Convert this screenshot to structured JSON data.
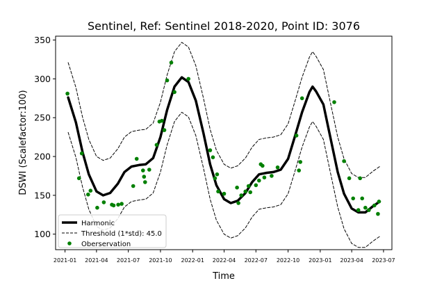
{
  "chart_data": {
    "type": "line",
    "title": "Sentinel, Ref: Sentinel 2018-2020, Point ID: 3076",
    "xlabel": "Time",
    "ylabel": "DSWI (Scalefactor:100)",
    "xlim": [
      "2020-12-05",
      "2023-07-25"
    ],
    "ylim": [
      80,
      355
    ],
    "x_ticks": [
      "2021-01",
      "2021-04",
      "2021-07",
      "2021-10",
      "2022-01",
      "2022-04",
      "2022-07",
      "2022-10",
      "2023-01",
      "2023-04",
      "2023-07"
    ],
    "y_ticks": [
      100,
      150,
      200,
      250,
      300,
      350
    ],
    "grid": false,
    "legend_position": "lower-left",
    "colors": {
      "harmonic": "#000000",
      "threshold": "#000000",
      "observation": "#008000"
    },
    "series": [
      {
        "name": "Harmonic",
        "style": "solid",
        "points": [
          [
            "2021-01-10",
            276
          ],
          [
            "2021-02-01",
            244
          ],
          [
            "2021-02-20",
            206
          ],
          [
            "2021-03-10",
            177
          ],
          [
            "2021-04-01",
            155
          ],
          [
            "2021-04-20",
            150
          ],
          [
            "2021-05-10",
            153
          ],
          [
            "2021-06-01",
            165
          ],
          [
            "2021-06-20",
            180
          ],
          [
            "2021-07-10",
            187
          ],
          [
            "2021-08-01",
            189
          ],
          [
            "2021-08-20",
            190
          ],
          [
            "2021-09-10",
            198
          ],
          [
            "2021-10-01",
            225
          ],
          [
            "2021-10-20",
            260
          ],
          [
            "2021-11-10",
            290
          ],
          [
            "2021-12-01",
            302
          ],
          [
            "2021-12-20",
            296
          ],
          [
            "2022-01-10",
            272
          ],
          [
            "2022-02-01",
            230
          ],
          [
            "2022-02-20",
            190
          ],
          [
            "2022-03-10",
            163
          ],
          [
            "2022-04-01",
            145
          ],
          [
            "2022-04-20",
            140
          ],
          [
            "2022-05-10",
            143
          ],
          [
            "2022-06-01",
            153
          ],
          [
            "2022-06-20",
            167
          ],
          [
            "2022-07-10",
            177
          ],
          [
            "2022-08-01",
            179
          ],
          [
            "2022-08-20",
            180
          ],
          [
            "2022-09-10",
            183
          ],
          [
            "2022-10-01",
            197
          ],
          [
            "2022-10-20",
            225
          ],
          [
            "2022-11-10",
            257
          ],
          [
            "2022-12-01",
            283
          ],
          [
            "2022-12-10",
            290
          ],
          [
            "2022-12-20",
            284
          ],
          [
            "2023-01-10",
            267
          ],
          [
            "2023-02-01",
            220
          ],
          [
            "2023-02-20",
            180
          ],
          [
            "2023-03-10",
            152
          ],
          [
            "2023-04-01",
            133
          ],
          [
            "2023-04-20",
            128
          ],
          [
            "2023-05-10",
            128
          ],
          [
            "2023-06-01",
            136
          ],
          [
            "2023-06-20",
            142
          ]
        ]
      },
      {
        "name": "Threshold (1*std): 45.0",
        "style": "dashed",
        "points": [
          [
            "2021-01-10",
            321
          ],
          [
            "2021-02-01",
            289
          ],
          [
            "2021-02-20",
            251
          ],
          [
            "2021-03-10",
            222
          ],
          [
            "2021-04-01",
            200
          ],
          [
            "2021-04-20",
            195
          ],
          [
            "2021-05-10",
            198
          ],
          [
            "2021-06-01",
            210
          ],
          [
            "2021-06-20",
            225
          ],
          [
            "2021-07-10",
            232
          ],
          [
            "2021-08-01",
            234
          ],
          [
            "2021-08-20",
            235
          ],
          [
            "2021-09-10",
            243
          ],
          [
            "2021-10-01",
            270
          ],
          [
            "2021-10-20",
            305
          ],
          [
            "2021-11-10",
            335
          ],
          [
            "2021-12-01",
            347
          ],
          [
            "2021-12-20",
            341
          ],
          [
            "2022-01-10",
            317
          ],
          [
            "2022-02-01",
            275
          ],
          [
            "2022-02-20",
            235
          ],
          [
            "2022-03-10",
            208
          ],
          [
            "2022-04-01",
            190
          ],
          [
            "2022-04-20",
            185
          ],
          [
            "2022-05-10",
            188
          ],
          [
            "2022-06-01",
            198
          ],
          [
            "2022-06-20",
            212
          ],
          [
            "2022-07-10",
            222
          ],
          [
            "2022-08-01",
            224
          ],
          [
            "2022-08-20",
            225
          ],
          [
            "2022-09-10",
            228
          ],
          [
            "2022-10-01",
            242
          ],
          [
            "2022-10-20",
            270
          ],
          [
            "2022-11-10",
            302
          ],
          [
            "2022-12-01",
            328
          ],
          [
            "2022-12-10",
            335
          ],
          [
            "2022-12-20",
            329
          ],
          [
            "2023-01-10",
            312
          ],
          [
            "2023-02-01",
            265
          ],
          [
            "2023-02-20",
            225
          ],
          [
            "2023-03-10",
            197
          ],
          [
            "2023-04-01",
            178
          ],
          [
            "2023-04-20",
            173
          ],
          [
            "2023-05-10",
            173
          ],
          [
            "2023-06-01",
            181
          ],
          [
            "2023-06-20",
            187
          ]
        ]
      },
      {
        "name": "",
        "style": "dashed",
        "points": [
          [
            "2021-01-10",
            231
          ],
          [
            "2021-02-01",
            199
          ],
          [
            "2021-02-20",
            161
          ],
          [
            "2021-03-10",
            132
          ],
          [
            "2021-04-01",
            110
          ],
          [
            "2021-04-20",
            105
          ],
          [
            "2021-05-10",
            108
          ],
          [
            "2021-06-01",
            120
          ],
          [
            "2021-06-20",
            135
          ],
          [
            "2021-07-10",
            142
          ],
          [
            "2021-08-01",
            144
          ],
          [
            "2021-08-20",
            145
          ],
          [
            "2021-09-10",
            153
          ],
          [
            "2021-10-01",
            180
          ],
          [
            "2021-10-20",
            215
          ],
          [
            "2021-11-10",
            245
          ],
          [
            "2021-12-01",
            257
          ],
          [
            "2021-12-20",
            251
          ],
          [
            "2022-01-10",
            227
          ],
          [
            "2022-02-01",
            185
          ],
          [
            "2022-02-20",
            145
          ],
          [
            "2022-03-10",
            118
          ],
          [
            "2022-04-01",
            100
          ],
          [
            "2022-04-20",
            95
          ],
          [
            "2022-05-10",
            98
          ],
          [
            "2022-06-01",
            108
          ],
          [
            "2022-06-20",
            122
          ],
          [
            "2022-07-10",
            132
          ],
          [
            "2022-08-01",
            134
          ],
          [
            "2022-08-20",
            135
          ],
          [
            "2022-09-10",
            138
          ],
          [
            "2022-10-01",
            152
          ],
          [
            "2022-10-20",
            180
          ],
          [
            "2022-11-10",
            212
          ],
          [
            "2022-12-01",
            238
          ],
          [
            "2022-12-10",
            245
          ],
          [
            "2022-12-20",
            239
          ],
          [
            "2023-01-10",
            222
          ],
          [
            "2023-02-01",
            175
          ],
          [
            "2023-02-20",
            135
          ],
          [
            "2023-03-10",
            107
          ],
          [
            "2023-04-01",
            88
          ],
          [
            "2023-04-20",
            83
          ],
          [
            "2023-05-10",
            83
          ],
          [
            "2023-06-01",
            91
          ],
          [
            "2023-06-20",
            97
          ]
        ]
      },
      {
        "name": "Oberservation",
        "style": "markers",
        "points": [
          [
            "2021-01-08",
            281
          ],
          [
            "2021-02-10",
            172
          ],
          [
            "2021-02-18",
            204
          ],
          [
            "2021-03-08",
            151
          ],
          [
            "2021-03-15",
            156
          ],
          [
            "2021-04-03",
            134
          ],
          [
            "2021-04-22",
            141
          ],
          [
            "2021-05-15",
            138
          ],
          [
            "2021-05-20",
            137
          ],
          [
            "2021-06-02",
            138
          ],
          [
            "2021-06-12",
            139
          ],
          [
            "2021-07-15",
            162
          ],
          [
            "2021-07-25",
            197
          ],
          [
            "2021-08-12",
            182
          ],
          [
            "2021-08-15",
            174
          ],
          [
            "2021-08-18",
            167
          ],
          [
            "2021-08-30",
            183
          ],
          [
            "2021-09-20",
            215
          ],
          [
            "2021-09-28",
            245
          ],
          [
            "2021-10-05",
            246
          ],
          [
            "2021-10-12",
            234
          ],
          [
            "2021-10-20",
            298
          ],
          [
            "2021-11-01",
            321
          ],
          [
            "2021-11-10",
            283
          ],
          [
            "2021-12-20",
            300
          ],
          [
            "2022-02-20",
            208
          ],
          [
            "2022-02-28",
            199
          ],
          [
            "2022-03-06",
            172
          ],
          [
            "2022-03-12",
            177
          ],
          [
            "2022-03-15",
            155
          ],
          [
            "2022-04-01",
            152
          ],
          [
            "2022-05-08",
            160
          ],
          [
            "2022-05-12",
            140
          ],
          [
            "2022-05-20",
            150
          ],
          [
            "2022-06-01",
            155
          ],
          [
            "2022-06-10",
            162
          ],
          [
            "2022-06-15",
            154
          ],
          [
            "2022-07-01",
            163
          ],
          [
            "2022-07-10",
            169
          ],
          [
            "2022-07-15",
            190
          ],
          [
            "2022-07-20",
            188
          ],
          [
            "2022-07-25",
            173
          ],
          [
            "2022-08-15",
            175
          ],
          [
            "2022-09-01",
            186
          ],
          [
            "2022-10-25",
            227
          ],
          [
            "2022-11-01",
            182
          ],
          [
            "2022-11-05",
            193
          ],
          [
            "2022-11-10",
            275
          ],
          [
            "2023-02-10",
            270
          ],
          [
            "2023-03-10",
            194
          ],
          [
            "2023-03-25",
            172
          ],
          [
            "2023-04-05",
            146
          ],
          [
            "2023-04-20",
            131
          ],
          [
            "2023-04-25",
            172
          ],
          [
            "2023-05-01",
            146
          ],
          [
            "2023-05-10",
            134
          ],
          [
            "2023-05-20",
            131
          ],
          [
            "2023-06-05",
            137
          ],
          [
            "2023-06-15",
            126
          ],
          [
            "2023-06-18",
            142
          ]
        ]
      }
    ]
  }
}
